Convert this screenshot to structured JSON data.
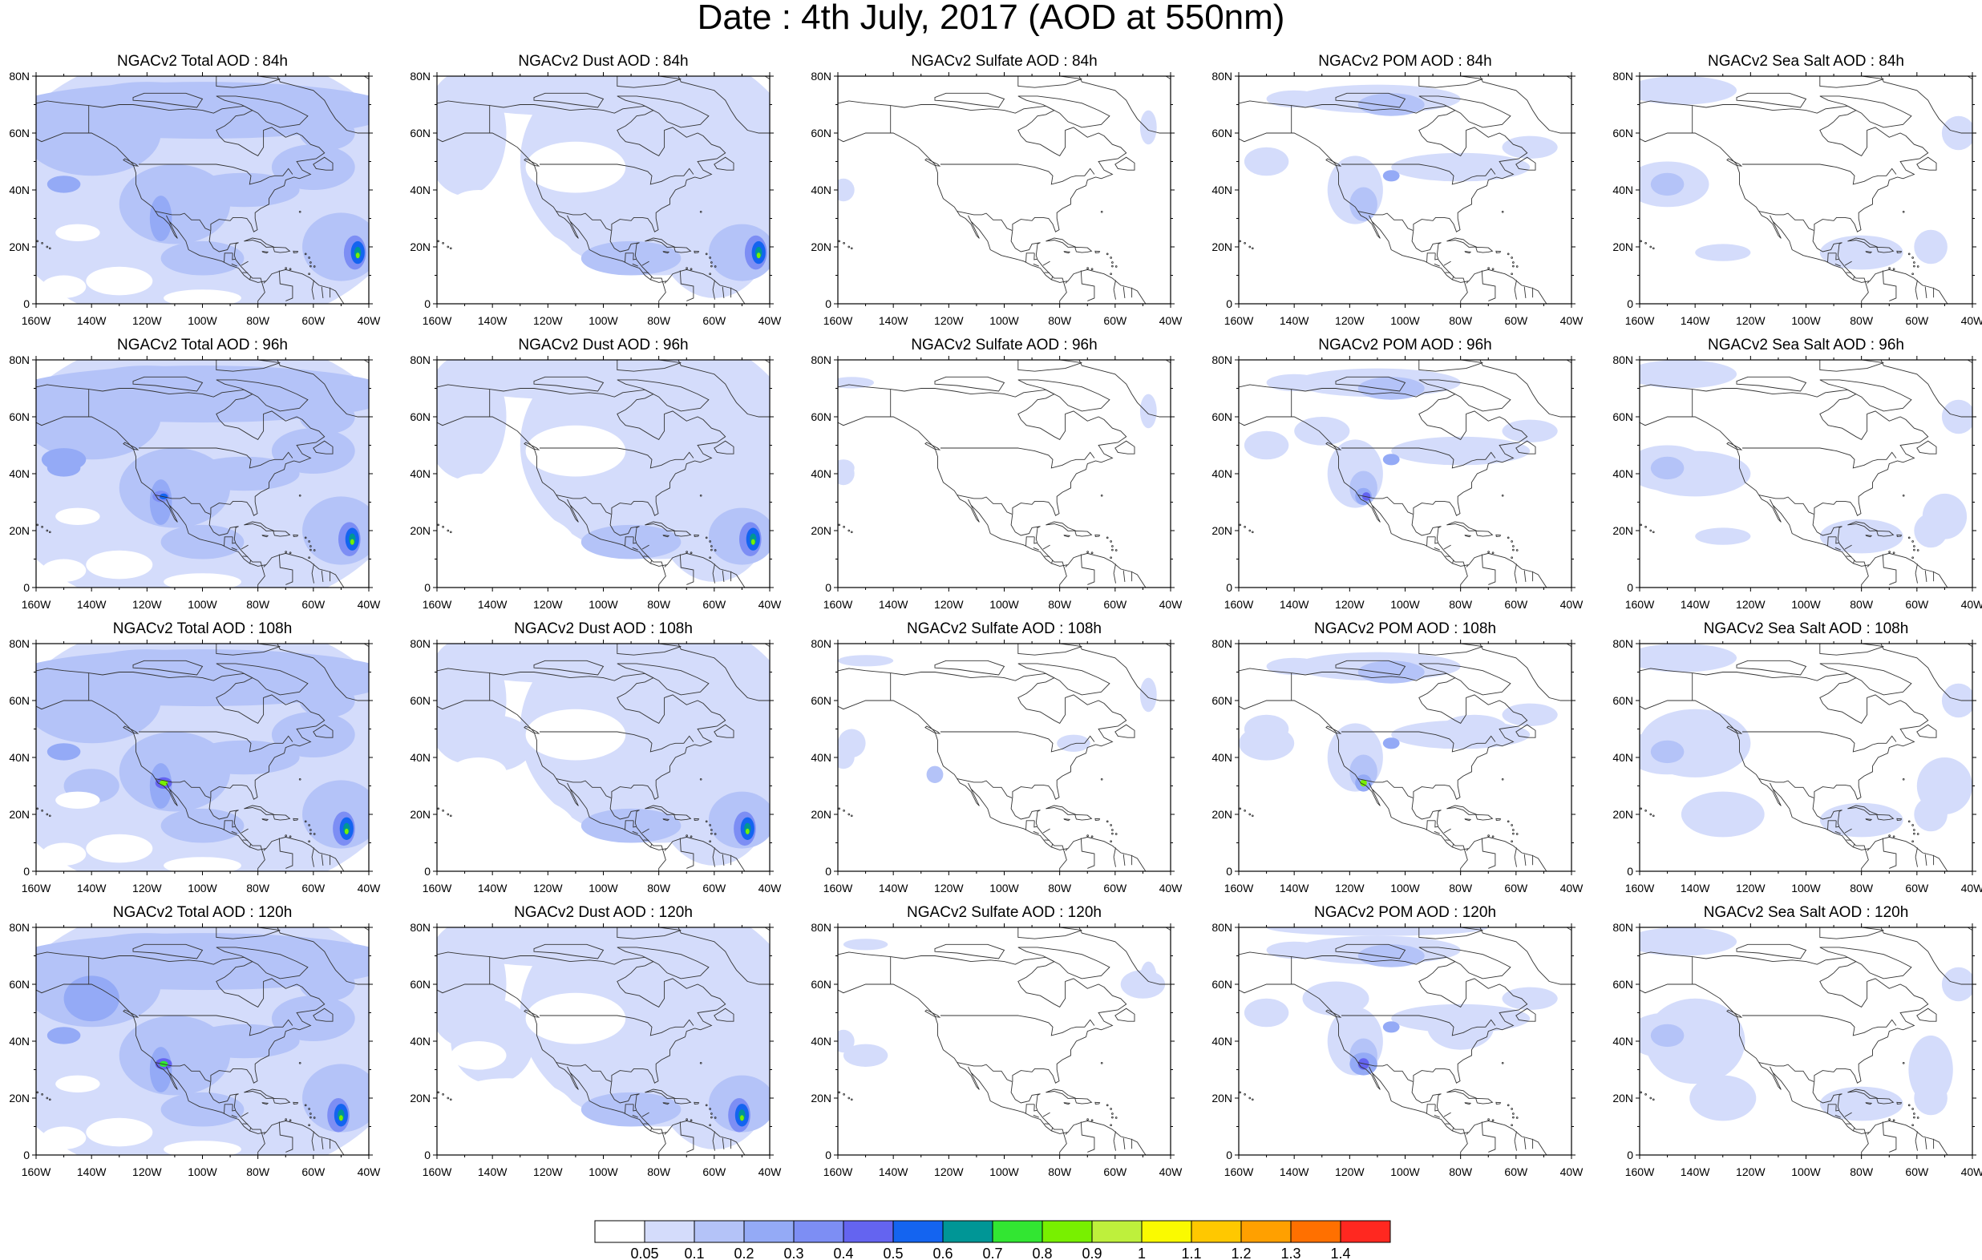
{
  "title": "Date : 4th July, 2017 (AOD at 550nm)",
  "map": {
    "lat_labels": [
      "0",
      "20N",
      "40N",
      "60N",
      "80N"
    ],
    "lon_labels": [
      "160W",
      "140W",
      "120W",
      "100W",
      "80W",
      "60W",
      "40W"
    ],
    "lat_range": [
      0,
      80
    ],
    "lon_range": [
      -160,
      -40
    ]
  },
  "panels": [
    {
      "title": "NGACv2 Total AOD : 84h",
      "species": "total",
      "hour": 84
    },
    {
      "title": "NGACv2 Dust AOD : 84h",
      "species": "dust",
      "hour": 84
    },
    {
      "title": "NGACv2 Sulfate AOD : 84h",
      "species": "sulfate",
      "hour": 84
    },
    {
      "title": "NGACv2 POM AOD : 84h",
      "species": "pom",
      "hour": 84
    },
    {
      "title": "NGACv2 Sea Salt AOD : 84h",
      "species": "seasalt",
      "hour": 84
    },
    {
      "title": "NGACv2 Total AOD : 96h",
      "species": "total",
      "hour": 96
    },
    {
      "title": "NGACv2 Dust AOD : 96h",
      "species": "dust",
      "hour": 96
    },
    {
      "title": "NGACv2 Sulfate AOD : 96h",
      "species": "sulfate",
      "hour": 96
    },
    {
      "title": "NGACv2 POM AOD : 96h",
      "species": "pom",
      "hour": 96
    },
    {
      "title": "NGACv2 Sea Salt AOD : 96h",
      "species": "seasalt",
      "hour": 96
    },
    {
      "title": "NGACv2 Total AOD : 108h",
      "species": "total",
      "hour": 108
    },
    {
      "title": "NGACv2 Dust AOD : 108h",
      "species": "dust",
      "hour": 108
    },
    {
      "title": "NGACv2 Sulfate AOD : 108h",
      "species": "sulfate",
      "hour": 108
    },
    {
      "title": "NGACv2 POM AOD : 108h",
      "species": "pom",
      "hour": 108
    },
    {
      "title": "NGACv2 Sea Salt AOD : 108h",
      "species": "seasalt",
      "hour": 108
    },
    {
      "title": "NGACv2 Total AOD : 120h",
      "species": "total",
      "hour": 120
    },
    {
      "title": "NGACv2 Dust AOD : 120h",
      "species": "dust",
      "hour": 120
    },
    {
      "title": "NGACv2 Sulfate AOD : 120h",
      "species": "sulfate",
      "hour": 120
    },
    {
      "title": "NGACv2 POM AOD : 120h",
      "species": "pom",
      "hour": 120
    },
    {
      "title": "NGACv2 Sea Salt  AOD : 120h",
      "species": "seasalt",
      "hour": 120
    }
  ],
  "colorbar": {
    "labels": [
      "0.05",
      "0.1",
      "0.2",
      "0.3",
      "0.4",
      "0.5",
      "0.6",
      "0.7",
      "0.8",
      "0.9",
      "1",
      "1.1",
      "1.2",
      "1.3",
      "1.4"
    ],
    "colors": [
      "#ffffff",
      "#d4dcfb",
      "#b4c3f8",
      "#94aaf6",
      "#7d8ef4",
      "#6464f0",
      "#1464f0",
      "#009696",
      "#32e632",
      "#78f000",
      "#bef03c",
      "#fafa00",
      "#ffc800",
      "#ffa000",
      "#ff7000",
      "#ff2820"
    ]
  }
}
